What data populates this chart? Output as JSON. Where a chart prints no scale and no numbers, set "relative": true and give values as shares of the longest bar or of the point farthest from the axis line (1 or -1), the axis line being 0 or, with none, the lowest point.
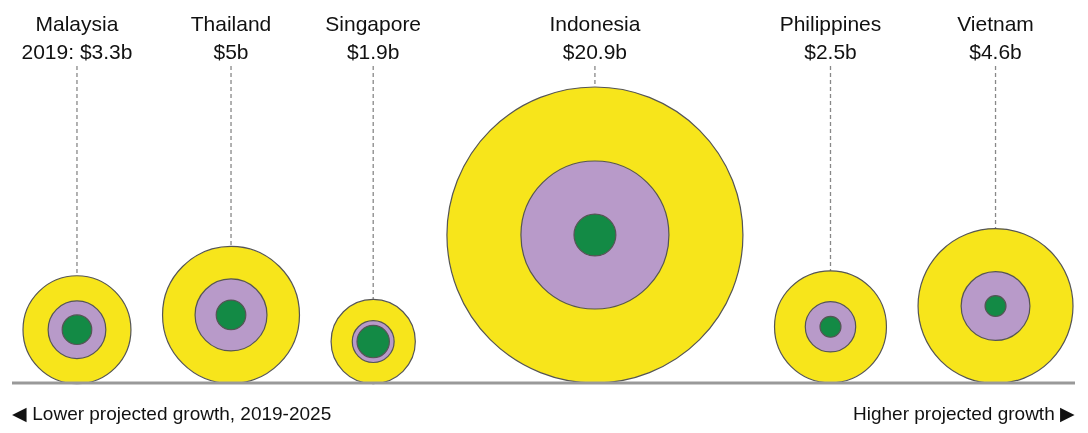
{
  "chart_data": {
    "type": "bubble",
    "relative": true,
    "grid": "x",
    "categories": [
      "Malaysia",
      "Thailand",
      "Singapore",
      "Indonesia",
      "Philippines",
      "Vietnam"
    ],
    "series": [
      {
        "color": "#f7e51b",
        "values": [
          0.36,
          0.46,
          0.28,
          1,
          0.38,
          0.52
        ],
        "sizes": [
          0.133,
          0.214,
          0.081,
          1,
          0.143,
          0.274
        ]
      },
      {
        "color": "#b89ac9",
        "values": [
          0.36,
          0.46,
          0.28,
          1,
          0.38,
          0.52
        ],
        "sizes": [
          0.038,
          0.059,
          0.02,
          0.25,
          0.029,
          0.054
        ]
      },
      {
        "color": "#138a45",
        "values": [
          0.36,
          0.46,
          0.28,
          1,
          0.38,
          0.52
        ],
        "sizes": [
          0.01,
          0.01,
          0.012,
          0.02,
          0.005,
          0.005
        ]
      }
    ],
    "annotations": [
      "2019: $3.3b",
      "$5b",
      "$1.9b",
      "$20.9b",
      "$2.5b",
      "$4.6b",
      "◀ Lower projected growth, 2019-2025",
      "Higher projected growth ▶"
    ]
  }
}
